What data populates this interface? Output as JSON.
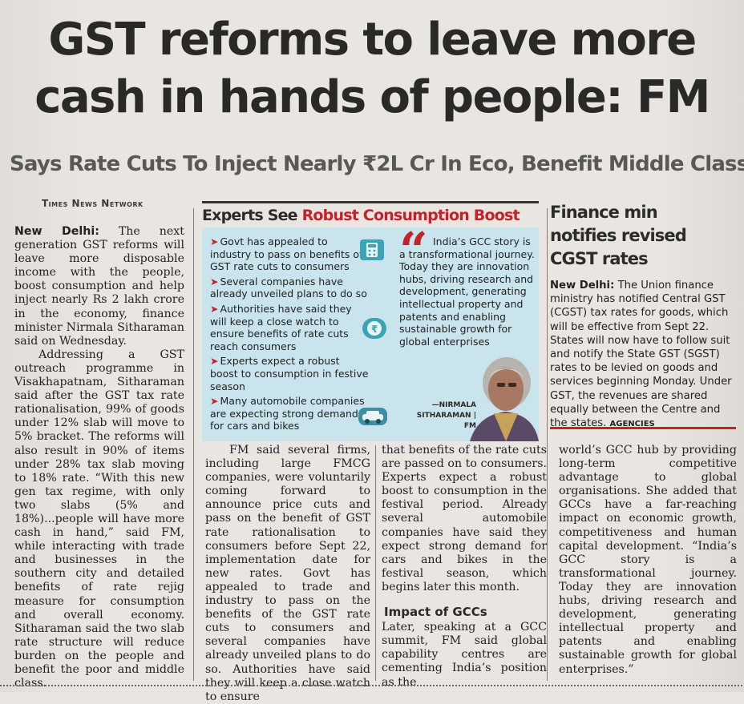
{
  "headline": {
    "line1": "GST reforms to leave more",
    "line2": "cash in hands of people: FM"
  },
  "subhead": "Says Rate Cuts To Inject Nearly ₹2L Cr In Eco, Benefit Middle Class",
  "byline": "Times News Network",
  "body": {
    "col1": {
      "dateline": "New Delhi:",
      "p1": "The next generation GST reforms will leave more disposable income with the people, boost consumption and help inject nearly Rs 2 lakh crore in the economy, finance minister Nirmala Sitharaman said on Wednesday.",
      "p2": "Addressing a GST outreach programme in Visakhapatnam, Sitharaman said after the GST tax rate rationalisation, 99% of goods under 12% slab will move to 5% bracket. The reforms will also result in 90% of items under 28% tax slab moving to 18% rate. “With this new gen tax regime, with only two slabs (5% and 18%)...people will have more cash in hand,” said FM, while interacting with trade and businesses in the southern city and detailed benefits of rate rejig measure for consumption and overall economy. Sitharaman said the two slab rate structure will reduce burden on the people and benefit the poor and middle class."
    },
    "col2": {
      "p1": "FM said several firms, including large FMCG companies, were voluntarily coming forward to announce price cuts and pass on the benefit of GST rate rationalisation to consumers before Sept 22, implementation date for new rates. Govt has appealed to trade and industry to pass on the benefits of the GST rate cuts to consumers and several companies have already unveiled plans to do so. Authorities have said they will keep a close watch to ensure"
    },
    "col3": {
      "p1": "that benefits of the rate cuts are passed on to consumers. Experts expect a robust boost to consumption in the festival period. Already several automobile companies have said they expect strong demand for cars and bikes in the festival season, which begins later this month.",
      "subhead": "Impact of GCCs",
      "p2": "Later, speaking at a GCC summit, FM said global capability centres are cementing India’s position as the"
    },
    "col4": {
      "p1": "world’s GCC hub by providing long-term competitive advantage to global organisations. She added that GCCs have a far-reaching impact on economic growth, competitiveness and human capital development. “India’s GCC story is a transformational journey. Today they are innovation hubs, driving research and development, generating intellectual property and patents and enabling sustainable growth for global enterprises.”"
    }
  },
  "experts_box": {
    "title_dark": "Experts See",
    "title_red": "Robust Consumption Boost",
    "bullets": [
      "Govt has appealed to industry to pass on benefits of GST rate cuts to consumers",
      "Several companies have already unveiled plans to do so",
      "Authorities have said they will keep a close watch to ensure benefits of rate cuts reach consumers",
      "Experts expect a robust boost to consumption in festive season",
      "Many automobile companies are expecting strong demand for cars and bikes"
    ],
    "quote": "India’s GCC story is a transformational journey. Today they are innovation hubs, driving research and development, generating intellectual property and patents and enabling sustainable growth for global enterprises",
    "attribution_name": "—NIRMALA SITHARAMAN",
    "attribution_role": "FM"
  },
  "finance_box": {
    "title": "Finance min notifies revised CGST rates",
    "dateline": "New Delhi:",
    "body": "The Union finance ministry has notified Central GST (CGST) tax rates for goods, which will be effective from Sept 22. States will now have to follow suit and notify the State GST (SGST) rates to be levied on goods and services beginning Monday. Under GST, the revenues are shared equally between the Centre and the states.",
    "agency": "AGENCIES"
  },
  "colors": {
    "accent_red": "#c52129",
    "box_blue": "#c9e4ec",
    "icon_teal": "#3ba4b4"
  }
}
